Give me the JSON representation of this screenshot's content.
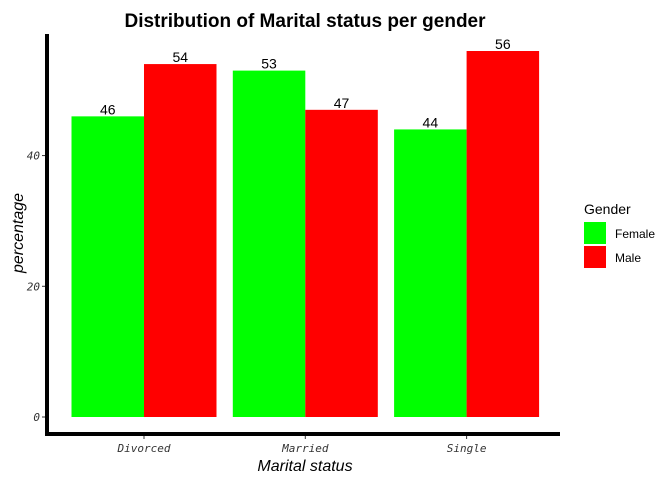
{
  "chart_data": {
    "type": "bar",
    "title": "Distribution of Marital status per gender",
    "xlabel": "Marital status",
    "ylabel": "percentage",
    "categories": [
      "Divorced",
      "Married",
      "Single"
    ],
    "series": [
      {
        "name": "Female",
        "values": [
          46,
          53,
          44
        ],
        "color": "#00ff00"
      },
      {
        "name": "Male",
        "values": [
          54,
          47,
          56
        ],
        "color": "#ff0000"
      }
    ],
    "ylim": [
      0,
      59
    ],
    "yticks": [
      0,
      20,
      40
    ],
    "legend": {
      "title": "Gender",
      "position": "right"
    },
    "grid": false
  }
}
